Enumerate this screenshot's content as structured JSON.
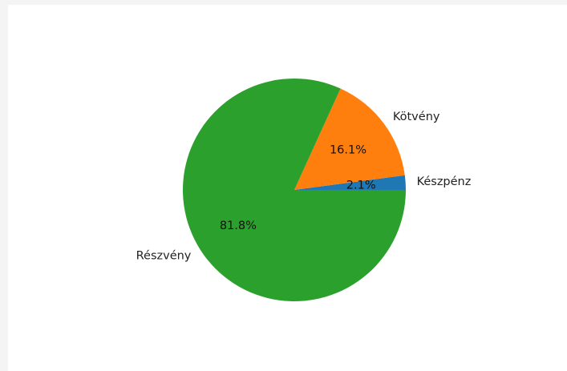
{
  "chart_data": {
    "type": "pie",
    "labels": [
      "Készpénz",
      "Kötvény",
      "Részvény"
    ],
    "values": [
      2.1,
      16.1,
      81.8
    ],
    "percent_labels": [
      "2.1%",
      "16.1%",
      "81.8%"
    ],
    "colors": [
      "#1f77b4",
      "#ff7f0e",
      "#2ca02c"
    ],
    "start_angle_deg": 0,
    "direction": "counterclockwise"
  }
}
